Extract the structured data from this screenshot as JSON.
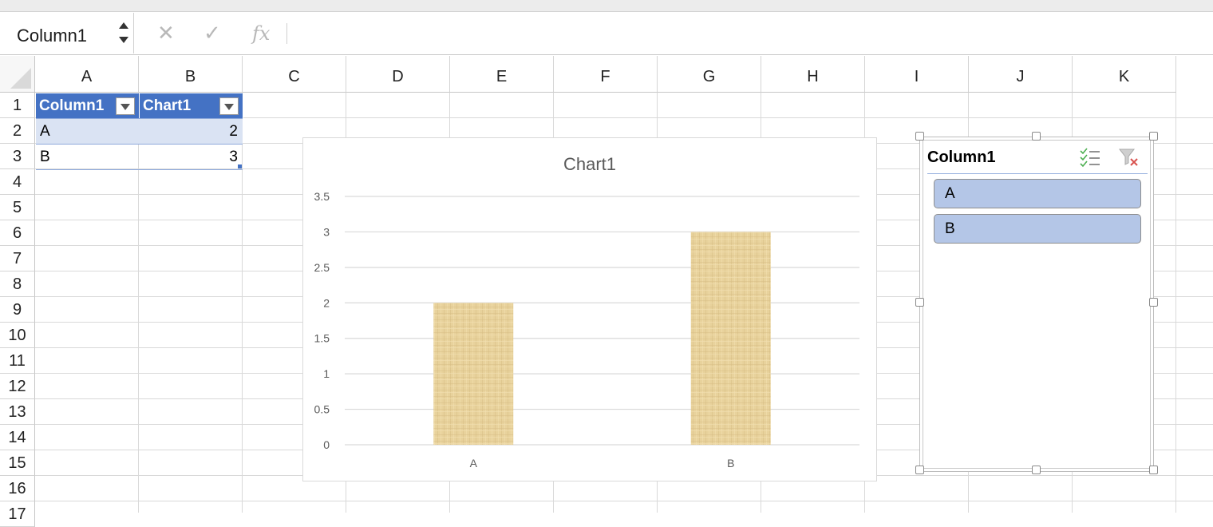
{
  "formula_bar": {
    "name_box": "Column1",
    "cancel_icon": "✕",
    "enter_icon": "✓",
    "function_icon": "fx",
    "formula": ""
  },
  "columns": [
    "A",
    "B",
    "C",
    "D",
    "E",
    "F",
    "G",
    "H",
    "I",
    "J",
    "K"
  ],
  "rows": [
    "1",
    "2",
    "3",
    "4",
    "5",
    "6",
    "7",
    "8",
    "9",
    "10",
    "11",
    "12",
    "13",
    "14",
    "15",
    "16",
    "17"
  ],
  "table": {
    "headers": [
      "Column1",
      "Chart1"
    ],
    "rows": [
      {
        "label": "A",
        "value": "2"
      },
      {
        "label": "B",
        "value": "3"
      }
    ],
    "header_color": "#4472c4",
    "band_color": "#dae3f3"
  },
  "chart_data": {
    "type": "bar",
    "title": "Chart1",
    "categories": [
      "A",
      "B"
    ],
    "values": [
      2,
      3
    ],
    "ylim": [
      0,
      3.5
    ],
    "yticks": [
      "0",
      "0.5",
      "1",
      "1.5",
      "2",
      "2.5",
      "3",
      "3.5"
    ],
    "grid": true,
    "bar_fill": "papyrus texture",
    "bar_color": "#e8d29c"
  },
  "slicer": {
    "title": "Column1",
    "items": [
      "A",
      "B"
    ],
    "multiselect_icon": "multi-select-icon",
    "clear_filter_icon": "clear-filter-icon",
    "item_color": "#b4c6e7"
  }
}
